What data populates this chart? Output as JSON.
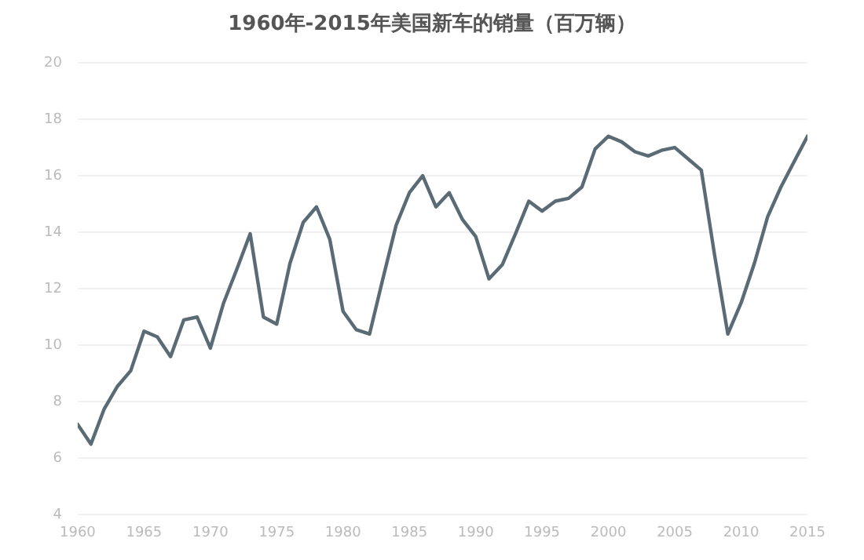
{
  "chart_data": {
    "type": "line",
    "title": "1960年-2015年美国新车的销量（百万辆）",
    "x": [
      1960,
      1961,
      1962,
      1963,
      1964,
      1965,
      1966,
      1967,
      1968,
      1969,
      1970,
      1971,
      1972,
      1973,
      1974,
      1975,
      1976,
      1977,
      1978,
      1979,
      1980,
      1981,
      1982,
      1983,
      1984,
      1985,
      1986,
      1987,
      1988,
      1989,
      1990,
      1991,
      1992,
      1993,
      1994,
      1995,
      1996,
      1997,
      1998,
      1999,
      2000,
      2001,
      2002,
      2003,
      2004,
      2005,
      2006,
      2007,
      2008,
      2009,
      2010,
      2011,
      2012,
      2013,
      2014,
      2015
    ],
    "series": [
      {
        "color": "#5b6b75",
        "values": [
          7.2,
          6.5,
          7.75,
          8.55,
          9.1,
          10.5,
          10.3,
          9.6,
          10.9,
          11.0,
          9.9,
          11.5,
          12.7,
          13.95,
          11.0,
          10.75,
          12.9,
          14.35,
          14.9,
          13.75,
          11.2,
          10.55,
          10.4,
          12.35,
          14.25,
          15.4,
          16.0,
          14.9,
          15.4,
          14.45,
          13.85,
          12.35,
          12.85,
          13.95,
          15.1,
          14.75,
          15.1,
          15.2,
          15.6,
          16.95,
          17.4,
          17.2,
          16.85,
          16.7,
          16.9,
          17.0,
          16.6,
          16.2,
          13.2,
          10.4,
          11.5,
          12.9,
          14.55,
          15.6,
          16.5,
          17.4
        ]
      }
    ],
    "xlim": [
      1960,
      2015
    ],
    "xticks": [
      1960,
      1965,
      1970,
      1975,
      1980,
      1985,
      1990,
      1995,
      2000,
      2005,
      2010,
      2015
    ],
    "ylim": [
      4,
      20
    ],
    "yticks": [
      4,
      6,
      8,
      10,
      12,
      14,
      16,
      18,
      20
    ],
    "grid": "y",
    "legend": false,
    "marker": "none",
    "line_style": "solid"
  }
}
